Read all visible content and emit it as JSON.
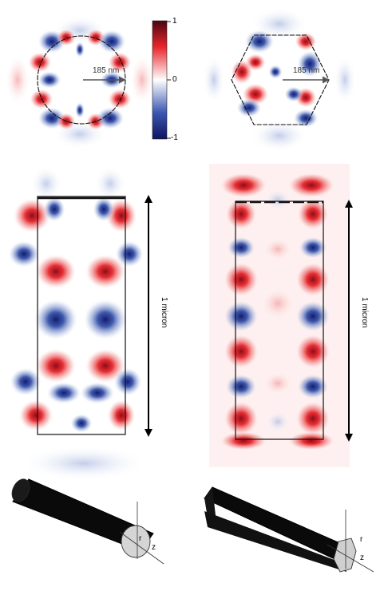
{
  "colorbar": {
    "max_label": "1",
    "mid_label": "0",
    "min_label": "-1",
    "colors": {
      "high": "#4a0512",
      "posMid": "#e8262a",
      "zero": "#ffffff",
      "negMid": "#3a56b0",
      "low": "#0f1460"
    }
  },
  "panels": {
    "circle_cross_section": {
      "radius_label": "185 nm"
    },
    "hexagon_cross_section": {
      "radius_label": "185 nm"
    },
    "circle_side_view": {
      "scale_label": "1 micron"
    },
    "hexagon_side_view": {
      "scale_label": "1 micron"
    }
  },
  "rods": {
    "cylinder": {
      "axis_r": "r",
      "axis_z": "z"
    },
    "hexagonal_prism": {
      "axis_r": "r",
      "axis_z": "z"
    }
  }
}
